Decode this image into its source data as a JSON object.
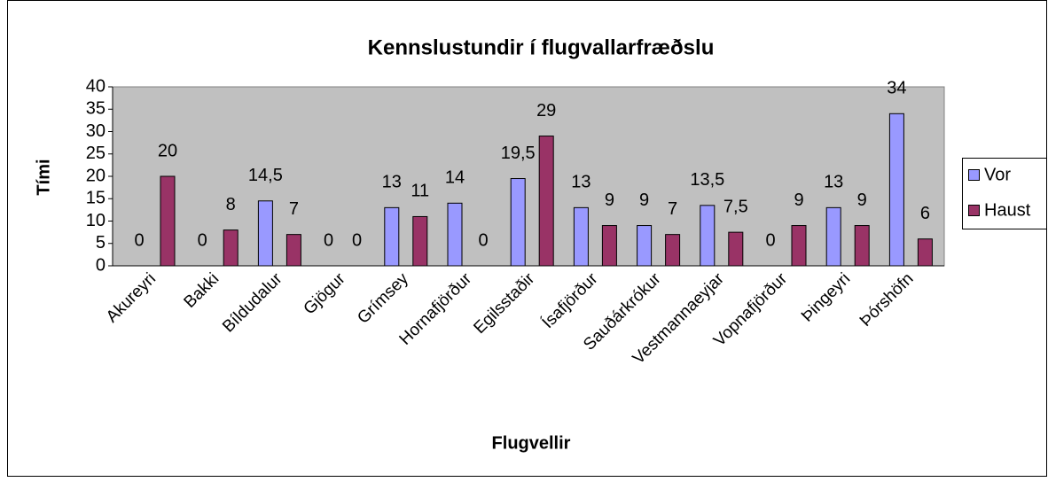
{
  "chart_data": {
    "type": "bar",
    "title": "Kennslustundir í flugvallarfræðslu",
    "x_label": "Flugvellir",
    "y_label": "Tími",
    "categories": [
      "Akureyri",
      "Bakki",
      "Bíldudalur",
      "Gjögur",
      "Grímsey",
      "Hornafjörður",
      "Egilsstaðir",
      "Ísafjörður",
      "Sauðárkrókur",
      "Vestmannaeyjar",
      "Vopnafjörður",
      "Þingeyri",
      "Þórshöfn"
    ],
    "series": [
      {
        "name": "Vor",
        "color": "#9999ff",
        "values": [
          0,
          0,
          14.5,
          0,
          13,
          14,
          19.5,
          13,
          9,
          13.5,
          0,
          13,
          34
        ],
        "value_labels": [
          "0",
          "0",
          "14,5",
          "0",
          "13",
          "14",
          "19,5",
          "13",
          "9",
          "13,5",
          "0",
          "13",
          "34"
        ]
      },
      {
        "name": "Haust",
        "color": "#993366",
        "values": [
          20,
          8,
          7,
          0,
          11,
          0,
          29,
          9,
          7,
          7.5,
          9,
          9,
          6
        ],
        "value_labels": [
          "20",
          "8",
          "7",
          "0",
          "11",
          "0",
          "29",
          "9",
          "7",
          "7,5",
          "9",
          "9",
          "6"
        ]
      }
    ],
    "ylim": [
      0,
      40
    ],
    "yticks": [
      0,
      5,
      10,
      15,
      20,
      25,
      30,
      35,
      40
    ],
    "grid": false,
    "legend": "right",
    "plot_background": "#c0c0c0"
  }
}
